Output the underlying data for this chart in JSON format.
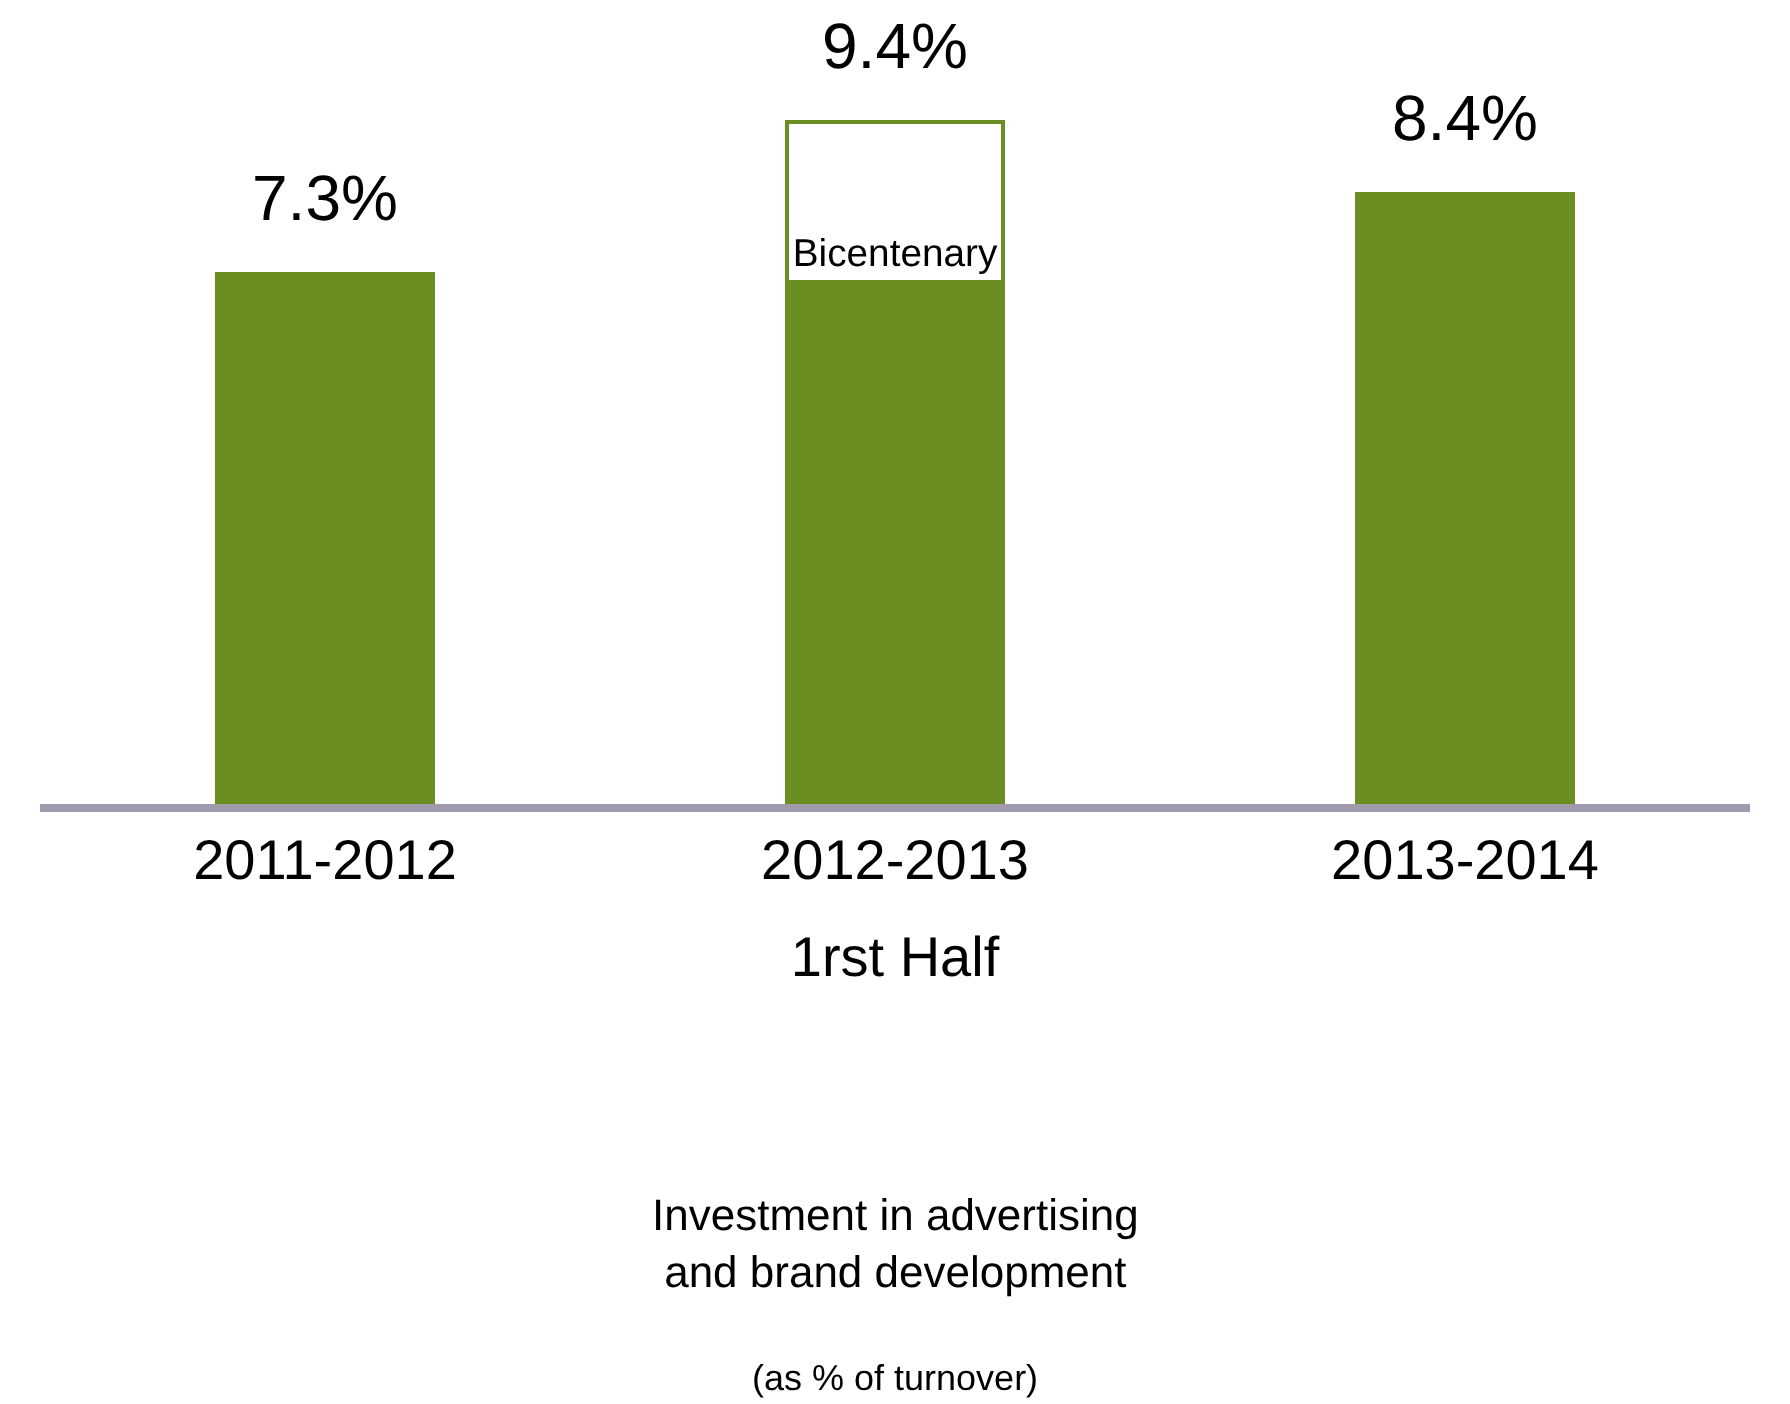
{
  "chart_data": {
    "type": "bar",
    "stacked": true,
    "categories": [
      "2011-2012",
      "2012-2013",
      "2013-2014"
    ],
    "series": [
      {
        "color": "#6b8e23",
        "values": [
          7.3,
          7.2,
          8.4
        ],
        "value_labels": [
          "7.3%",
          null,
          "8.4%"
        ]
      },
      {
        "name": "Bicentenary",
        "color": "#ffffff",
        "values": [
          null,
          2.2,
          null
        ]
      }
    ],
    "totals": [
      null,
      "9.4%",
      null
    ],
    "xlabel": "1rst Half",
    "annotations": [
      "Investment in advertising\nand brand development",
      "(as % of turnover)"
    ],
    "legend": false,
    "tick_labels": "x"
  }
}
